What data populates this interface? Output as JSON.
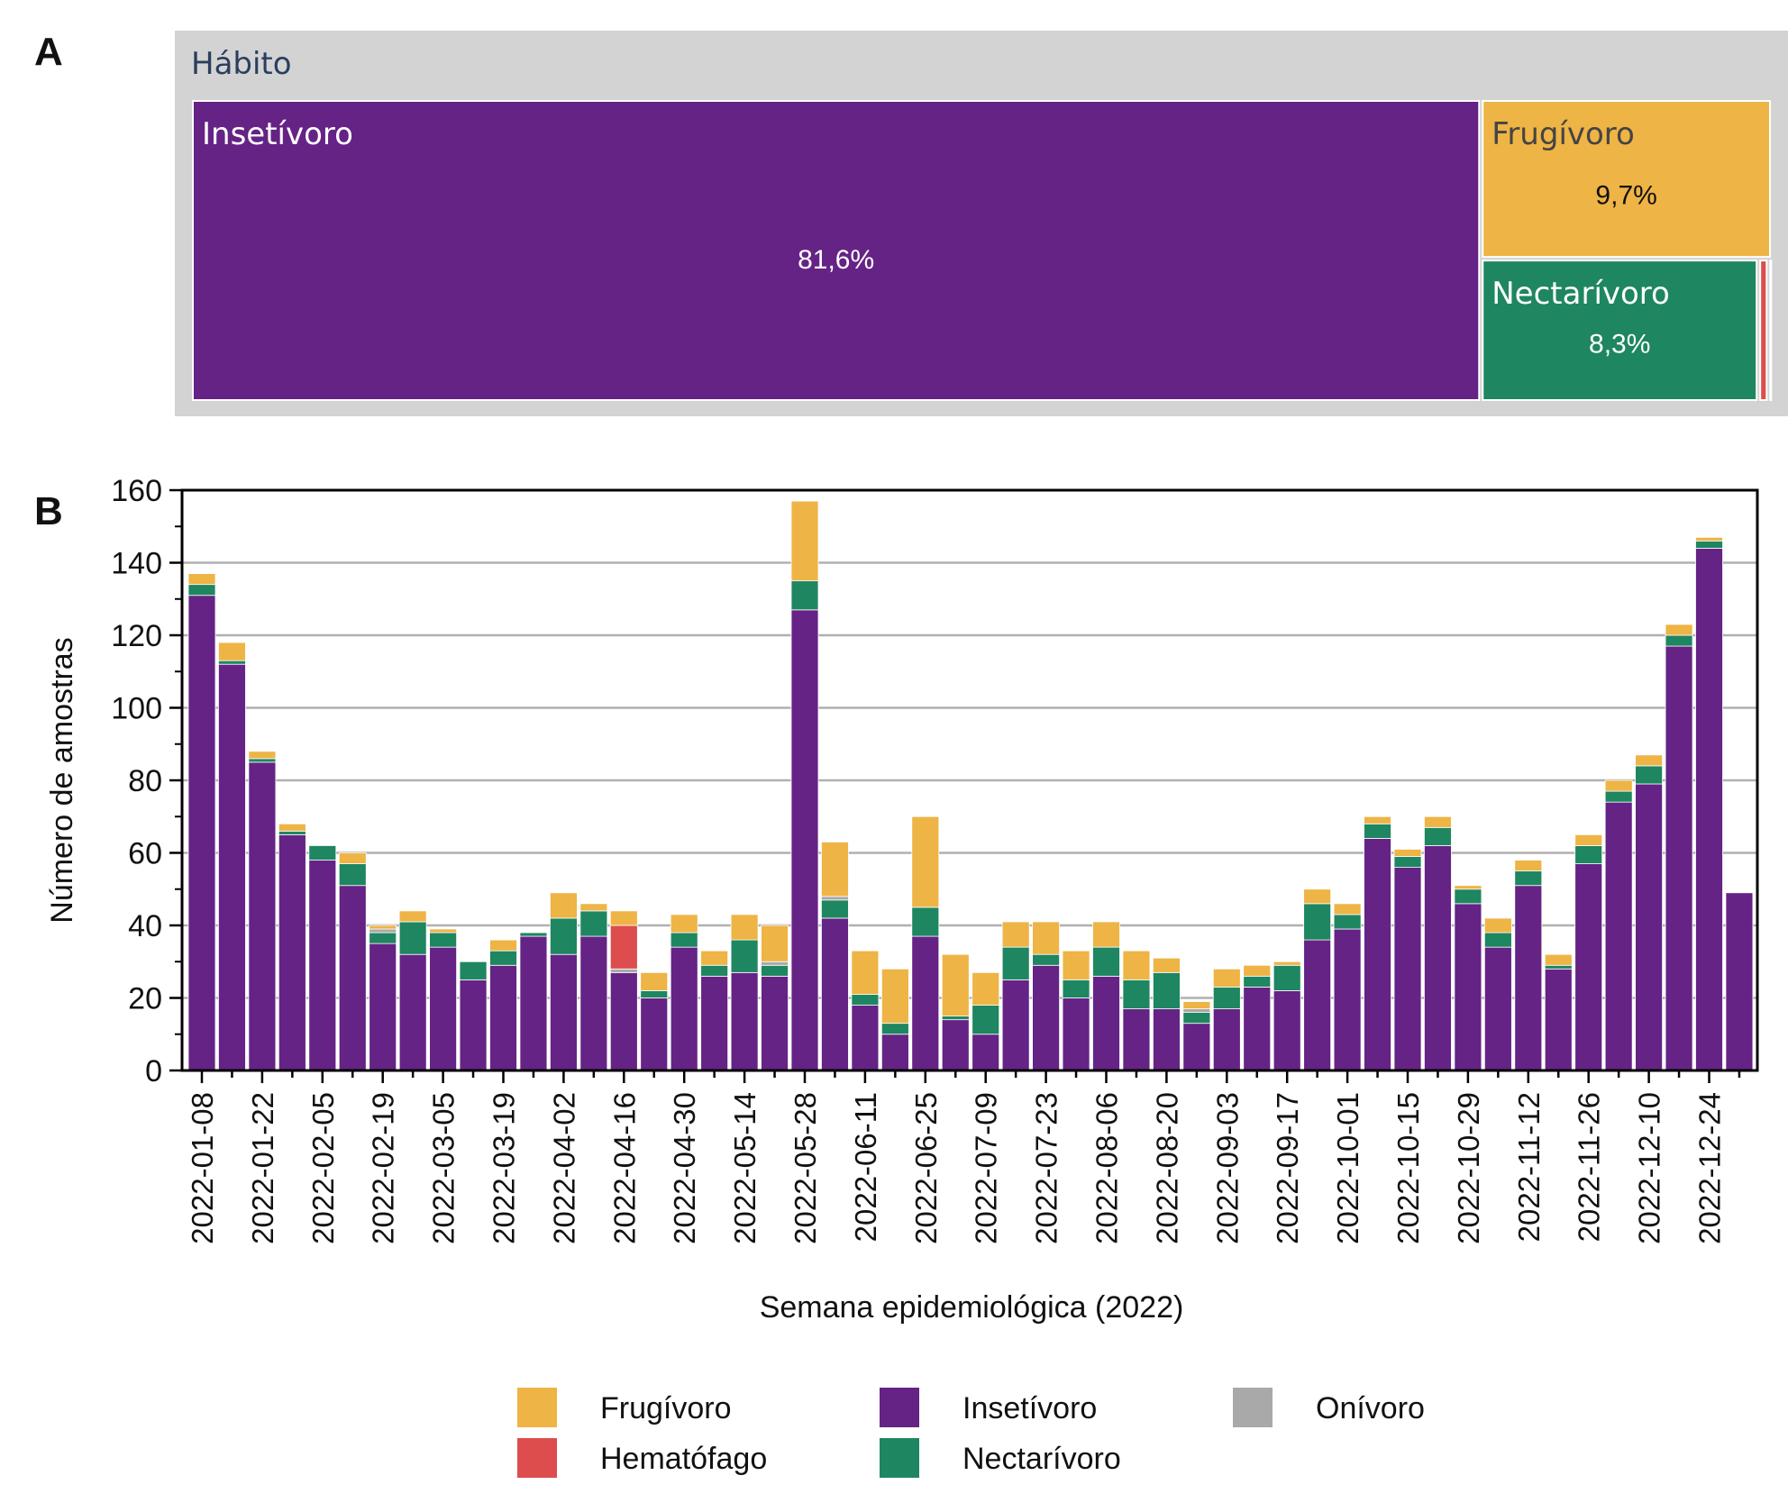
{
  "chart_data": [
    {
      "type": "treemap",
      "panel_label": "A",
      "root_label": "Hábito",
      "nodes": [
        {
          "label": "Insetívoro",
          "value": 81.6,
          "value_label": "81,6%",
          "color": "#652385"
        },
        {
          "label": "Frugívoro",
          "value": 9.7,
          "value_label": "9,7%",
          "color": "#eeb445"
        },
        {
          "label": "Nectarívoro",
          "value": 8.3,
          "value_label": "8,3%",
          "color": "#1e8660"
        },
        {
          "label": "",
          "value": 0.3,
          "value_label": "",
          "color": "#dd4d4d"
        },
        {
          "label": "",
          "value": 0.1,
          "value_label": "",
          "color": "#a9a9a9"
        }
      ]
    },
    {
      "type": "bar",
      "stacked": true,
      "panel_label": "B",
      "xlabel": "Semana epidemiológica (2022)",
      "ylabel": "Número de amostras",
      "ylim": [
        0,
        160
      ],
      "yticks": [
        0,
        20,
        40,
        60,
        80,
        100,
        120,
        140,
        160
      ],
      "grid": "horizontal",
      "x": [
        "2022-01-08",
        "2022-01-15",
        "2022-01-22",
        "2022-01-29",
        "2022-02-05",
        "2022-02-12",
        "2022-02-19",
        "2022-02-26",
        "2022-03-05",
        "2022-03-12",
        "2022-03-19",
        "2022-03-26",
        "2022-04-02",
        "2022-04-09",
        "2022-04-16",
        "2022-04-23",
        "2022-04-30",
        "2022-05-07",
        "2022-05-14",
        "2022-05-21",
        "2022-05-28",
        "2022-06-04",
        "2022-06-11",
        "2022-06-18",
        "2022-06-25",
        "2022-07-02",
        "2022-07-09",
        "2022-07-16",
        "2022-07-23",
        "2022-07-30",
        "2022-08-06",
        "2022-08-13",
        "2022-08-20",
        "2022-08-27",
        "2022-09-03",
        "2022-09-10",
        "2022-09-17",
        "2022-09-24",
        "2022-10-01",
        "2022-10-08",
        "2022-10-15",
        "2022-10-22",
        "2022-10-29",
        "2022-11-05",
        "2022-11-12",
        "2022-11-19",
        "2022-11-26",
        "2022-12-03",
        "2022-12-10",
        "2022-12-17",
        "2022-12-24",
        "2022-12-31"
      ],
      "x_tick_labels": [
        "2022-01-08",
        "2022-01-22",
        "2022-02-05",
        "2022-02-19",
        "2022-03-05",
        "2022-03-19",
        "2022-04-02",
        "2022-04-16",
        "2022-04-30",
        "2022-05-14",
        "2022-05-28",
        "2022-06-11",
        "2022-06-25",
        "2022-07-09",
        "2022-07-23",
        "2022-08-06",
        "2022-08-20",
        "2022-09-03",
        "2022-09-17",
        "2022-10-01",
        "2022-10-15",
        "2022-10-29",
        "2022-11-12",
        "2022-11-26",
        "2022-12-10",
        "2022-12-24"
      ],
      "series": [
        {
          "name": "Insetívoro",
          "color": "#652385",
          "values": [
            131,
            112,
            85,
            65,
            58,
            51,
            35,
            32,
            34,
            25,
            29,
            37,
            32,
            37,
            27,
            20,
            34,
            26,
            27,
            26,
            127,
            42,
            18,
            10,
            37,
            14,
            10,
            25,
            29,
            20,
            26,
            17,
            17,
            13,
            17,
            23,
            22,
            36,
            39,
            64,
            56,
            62,
            46,
            34,
            51,
            28,
            57,
            74,
            79,
            117,
            144,
            49
          ]
        },
        {
          "name": "Nectarívoro",
          "color": "#1e8660",
          "values": [
            3,
            1,
            1,
            1,
            4,
            6,
            3,
            9,
            4,
            5,
            4,
            1,
            10,
            7,
            0,
            2,
            4,
            3,
            9,
            3,
            8,
            5,
            3,
            3,
            8,
            1,
            8,
            9,
            3,
            5,
            8,
            8,
            10,
            3,
            6,
            3,
            7,
            10,
            4,
            4,
            3,
            5,
            4,
            4,
            4,
            1,
            5,
            3,
            5,
            3,
            2,
            0
          ]
        },
        {
          "name": "Onívoro",
          "color": "#a9a9a9",
          "values": [
            0,
            0,
            0,
            0,
            0,
            0,
            1,
            0,
            0,
            0,
            0,
            0,
            0,
            0,
            1,
            0,
            0,
            0,
            0,
            1,
            0,
            1,
            0,
            0,
            0,
            0,
            0,
            0,
            0,
            0,
            0,
            0,
            0,
            1,
            0,
            0,
            0,
            0,
            0,
            0,
            0,
            0,
            0,
            0,
            0,
            0,
            0,
            0,
            0,
            0,
            0,
            0
          ]
        },
        {
          "name": "Hematófago",
          "color": "#dd4d4d",
          "values": [
            0,
            0,
            0,
            0,
            0,
            0,
            0,
            0,
            0,
            0,
            0,
            0,
            0,
            0,
            12,
            0,
            0,
            0,
            0,
            0,
            0,
            0,
            0,
            0,
            0,
            0,
            0,
            0,
            0,
            0,
            0,
            0,
            0,
            0,
            0,
            0,
            0,
            0,
            0,
            0,
            0,
            0,
            0,
            0,
            0,
            0,
            0,
            0,
            0,
            0,
            0,
            0
          ]
        },
        {
          "name": "Frugívoro",
          "color": "#eeb445",
          "values": [
            3,
            5,
            2,
            2,
            0,
            3,
            1,
            3,
            1,
            0,
            3,
            0,
            7,
            2,
            4,
            5,
            5,
            4,
            7,
            10,
            22,
            15,
            12,
            15,
            25,
            17,
            9,
            7,
            9,
            8,
            7,
            8,
            4,
            2,
            5,
            3,
            1,
            4,
            3,
            2,
            2,
            3,
            1,
            4,
            3,
            3,
            3,
            3,
            3,
            3,
            1,
            0
          ]
        }
      ],
      "legend": {
        "placement": "bottom",
        "entries": [
          "Frugívoro",
          "Hematófago",
          "Insetívoro",
          "Nectarívoro",
          "Onívoro"
        ]
      }
    }
  ]
}
